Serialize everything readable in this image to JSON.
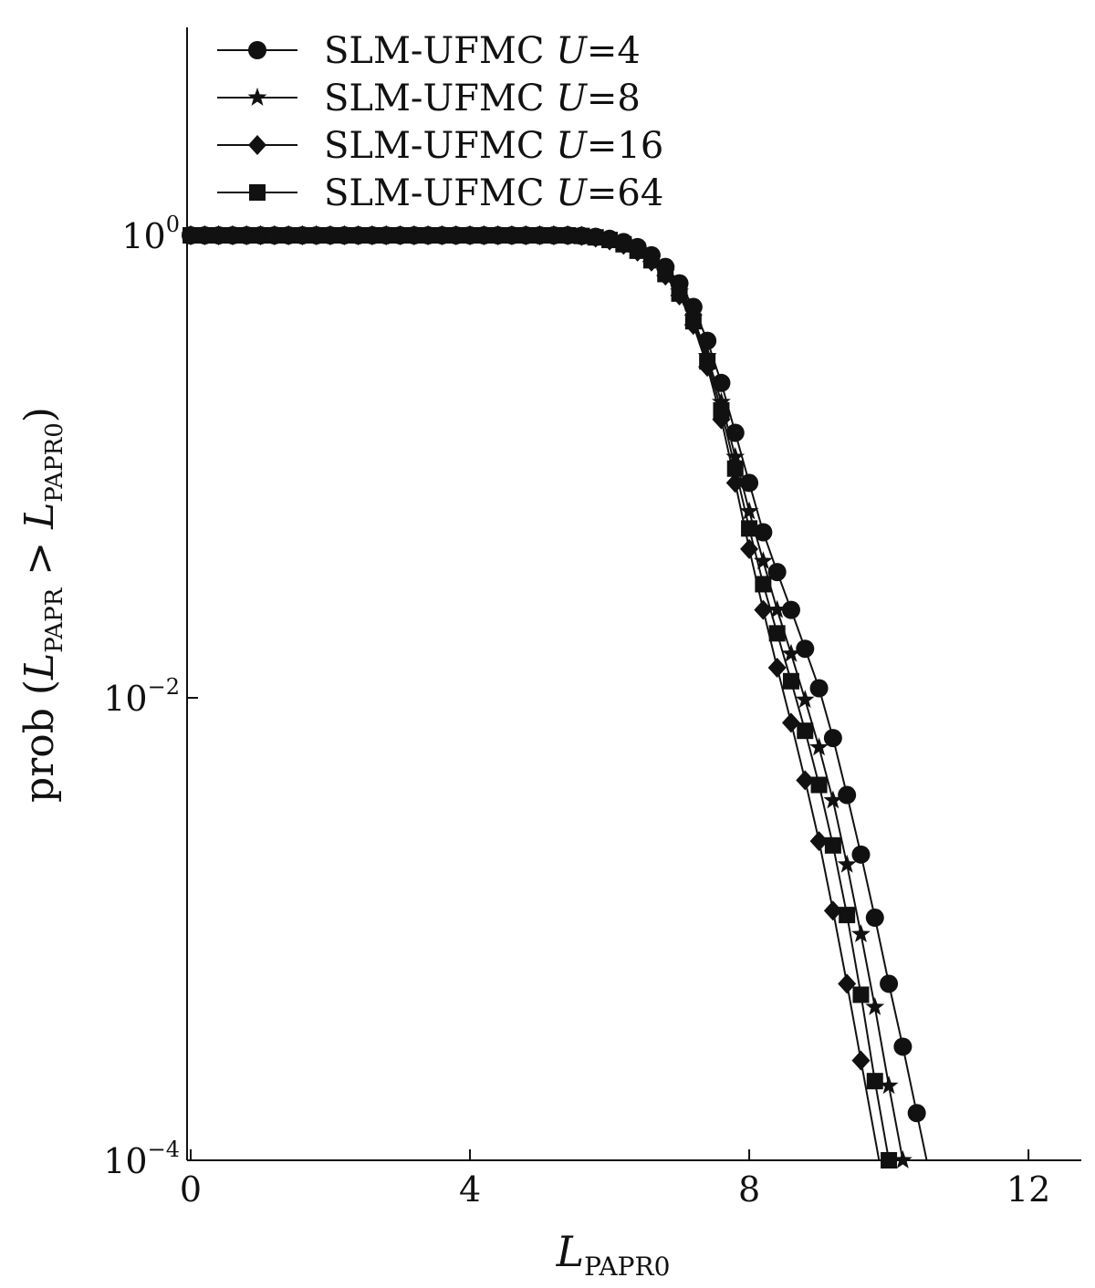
{
  "chart_data": {
    "type": "line",
    "title": "",
    "xlabel": {
      "base": "L",
      "sub": "PAPR0"
    },
    "ylabel": {
      "prefix": "prob (",
      "l1": "L",
      "sub1": "PAPR",
      "op": " > ",
      "l2": "L",
      "sub2": "PAPR0",
      "suffix": ")"
    },
    "xlim": [
      0,
      12.6
    ],
    "ylim": [
      0.0001,
      1
    ],
    "yscale": "log",
    "xticks": [
      {
        "value": 0,
        "label": "0"
      },
      {
        "value": 4,
        "label": "4"
      },
      {
        "value": 8,
        "label": "8"
      },
      {
        "value": 12,
        "label": "12"
      }
    ],
    "yticks": [
      {
        "value": 1,
        "base": "10",
        "exp": "0"
      },
      {
        "value": 0.01,
        "base": "10",
        "exp": "−2"
      },
      {
        "value": 0.0001,
        "base": "10",
        "exp": "−4"
      }
    ],
    "grid": false,
    "legend_position": "top-left",
    "x_points": [
      0,
      0.2,
      0.4,
      0.6,
      0.8,
      1.0,
      1.2,
      1.4,
      1.6,
      1.8,
      2.0,
      2.2,
      2.4,
      2.6,
      2.8,
      3.0,
      3.2,
      3.4,
      3.6,
      3.8,
      4.0,
      4.2,
      4.4,
      4.6,
      4.8,
      5.0,
      5.2,
      5.4,
      5.6,
      5.8,
      6.0,
      6.2,
      6.4,
      6.6,
      6.8,
      7.0,
      7.2,
      7.4,
      7.6,
      7.8,
      8.0,
      8.2,
      8.4,
      8.6,
      8.8,
      9.0,
      9.2,
      9.4,
      9.6,
      9.8,
      10.0,
      10.2,
      10.4
    ],
    "series": [
      {
        "name_prefix": "SLM-UFMC ",
        "name_var": "U",
        "name_suffix": "=4",
        "marker": "circle",
        "color": "#111111",
        "values": [
          1,
          1,
          1,
          1,
          1,
          1,
          1,
          1,
          1,
          1,
          1,
          1,
          1,
          1,
          1,
          1,
          1,
          1,
          1,
          1,
          1,
          1,
          1,
          1,
          1,
          1,
          1,
          1,
          0.995,
          0.985,
          0.966,
          0.935,
          0.89,
          0.82,
          0.73,
          0.62,
          0.49,
          0.35,
          0.23,
          0.14,
          0.085,
          0.052,
          0.035,
          0.024,
          0.0163,
          0.011,
          0.0067,
          0.0038,
          0.0021,
          0.00112,
          0.00058,
          0.00031,
          0.00016
        ]
      },
      {
        "name_prefix": "SLM-UFMC ",
        "name_var": "U",
        "name_suffix": "=8",
        "marker": "star",
        "color": "#111111",
        "values": [
          1,
          1,
          1,
          1,
          1,
          1,
          1,
          1,
          1,
          1,
          1,
          1,
          1,
          1,
          1,
          1,
          1,
          1,
          1,
          1,
          1,
          1,
          1,
          1,
          1,
          1,
          1,
          1,
          0.995,
          0.982,
          0.958,
          0.92,
          0.865,
          0.79,
          0.69,
          0.57,
          0.44,
          0.3,
          0.19,
          0.11,
          0.064,
          0.039,
          0.024,
          0.0155,
          0.0098,
          0.0061,
          0.0036,
          0.0019,
          0.00095,
          0.00046,
          0.00021,
          0.0001
        ]
      },
      {
        "name_prefix": "SLM-UFMC ",
        "name_var": "U",
        "name_suffix": "=16",
        "marker": "diamond",
        "color": "#111111",
        "values": [
          1,
          1,
          1,
          1,
          1,
          1,
          1,
          1,
          1,
          1,
          1,
          1,
          1,
          1,
          1,
          1,
          1,
          1,
          1,
          1,
          1,
          1,
          1,
          1,
          1,
          1,
          1,
          1,
          0.994,
          0.978,
          0.95,
          0.91,
          0.85,
          0.77,
          0.67,
          0.55,
          0.41,
          0.27,
          0.16,
          0.085,
          0.044,
          0.024,
          0.0135,
          0.0078,
          0.0044,
          0.0024,
          0.0012,
          0.00058,
          0.00027
        ]
      },
      {
        "name_prefix": "SLM-UFMC ",
        "name_var": "U",
        "name_suffix": "=64",
        "marker": "square",
        "color": "#111111",
        "values": [
          1,
          1,
          1,
          1,
          1,
          1,
          1,
          1,
          1,
          1,
          1,
          1,
          1,
          1,
          1,
          1,
          1,
          1,
          1,
          1,
          1,
          1,
          1,
          1,
          1,
          1,
          1,
          1,
          0.994,
          0.98,
          0.955,
          0.915,
          0.858,
          0.78,
          0.68,
          0.56,
          0.425,
          0.285,
          0.175,
          0.098,
          0.054,
          0.031,
          0.019,
          0.0118,
          0.0072,
          0.0042,
          0.0023,
          0.00115,
          0.00052,
          0.00022,
          0.0001
        ]
      }
    ]
  }
}
